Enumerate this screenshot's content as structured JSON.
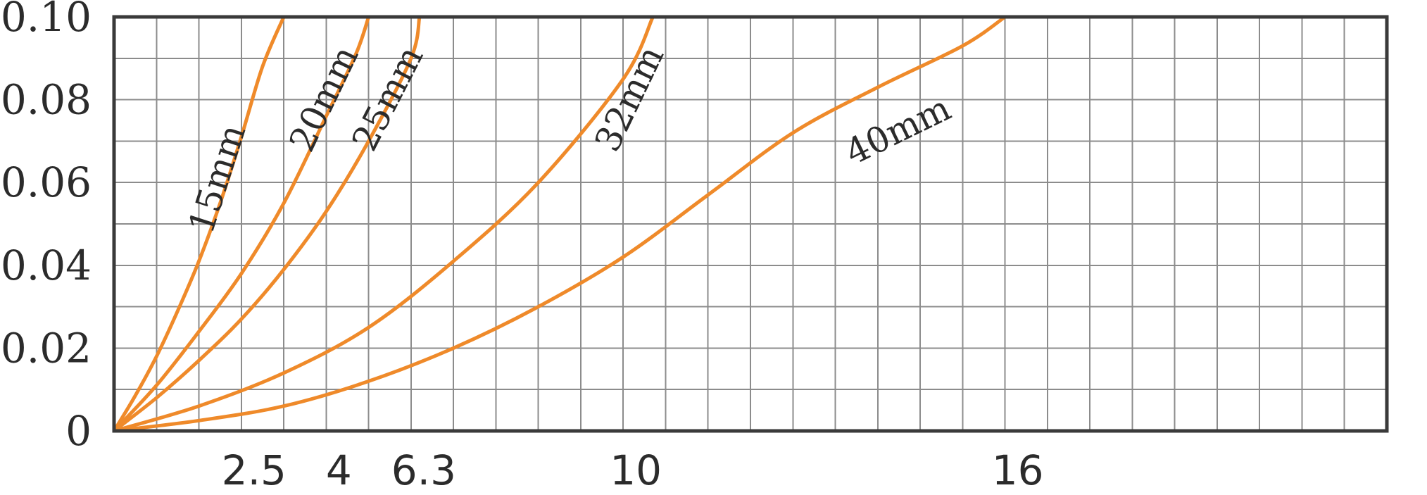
{
  "chart_data": {
    "type": "line",
    "title": "",
    "xlabel": "",
    "ylabel": "",
    "xlim": [
      0,
      30
    ],
    "ylim": [
      0,
      0.1
    ],
    "grid": true,
    "legend": "none",
    "colors": {
      "curve": "#ef8a2a",
      "grid": "#8c8c8c",
      "frame": "#3a3a3a",
      "text": "#2b2b2b"
    },
    "x_tick_labels": [
      {
        "value": 3,
        "label": "2.5"
      },
      {
        "value": 5,
        "label": "4"
      },
      {
        "value": 7,
        "label": "6.3"
      },
      {
        "value": 12,
        "label": "10"
      },
      {
        "value": 21,
        "label": "16"
      }
    ],
    "y_tick_labels": [
      {
        "value": 0,
        "label": "0"
      },
      {
        "value": 0.02,
        "label": "0.02"
      },
      {
        "value": 0.04,
        "label": "0.04"
      },
      {
        "value": 0.06,
        "label": "0.06"
      },
      {
        "value": 0.08,
        "label": "0.08"
      },
      {
        "value": 0.1,
        "label": "0.10"
      }
    ],
    "series": [
      {
        "name": "15mm",
        "points": [
          [
            0,
            0
          ],
          [
            0.5,
            0.0085
          ],
          [
            1,
            0.018
          ],
          [
            1.5,
            0.029
          ],
          [
            2,
            0.041
          ],
          [
            2.5,
            0.055
          ],
          [
            3,
            0.071
          ],
          [
            3.5,
            0.088
          ],
          [
            4,
            0.1
          ]
        ],
        "label_at": [
          2.7,
          0.06
        ]
      },
      {
        "name": "20mm",
        "points": [
          [
            0,
            0
          ],
          [
            1,
            0.011
          ],
          [
            2,
            0.024
          ],
          [
            3,
            0.038
          ],
          [
            4,
            0.055
          ],
          [
            5,
            0.076
          ],
          [
            5.7,
            0.091
          ],
          [
            6,
            0.1
          ]
        ],
        "label_at": [
          5.2,
          0.079
        ]
      },
      {
        "name": "25mm",
        "points": [
          [
            0,
            0
          ],
          [
            1,
            0.008
          ],
          [
            2,
            0.017
          ],
          [
            3,
            0.027
          ],
          [
            4,
            0.039
          ],
          [
            5,
            0.053
          ],
          [
            6,
            0.07
          ],
          [
            7,
            0.09
          ],
          [
            7.2,
            0.1
          ]
        ],
        "label_at": [
          6.7,
          0.079
        ]
      },
      {
        "name": "32mm",
        "points": [
          [
            0,
            0
          ],
          [
            2,
            0.006
          ],
          [
            4,
            0.014
          ],
          [
            6,
            0.025
          ],
          [
            8,
            0.041
          ],
          [
            10,
            0.06
          ],
          [
            12,
            0.085
          ],
          [
            12.7,
            0.1
          ]
        ],
        "label_at": [
          12.4,
          0.079
        ]
      },
      {
        "name": "40mm",
        "points": [
          [
            0,
            0
          ],
          [
            2,
            0.0025
          ],
          [
            4,
            0.006
          ],
          [
            6,
            0.012
          ],
          [
            8,
            0.02
          ],
          [
            10,
            0.03
          ],
          [
            12,
            0.042
          ],
          [
            14,
            0.057
          ],
          [
            16,
            0.072
          ],
          [
            18,
            0.083
          ],
          [
            20,
            0.093
          ],
          [
            21,
            0.1
          ]
        ],
        "label_at": [
          18.6,
          0.07
        ]
      }
    ]
  }
}
